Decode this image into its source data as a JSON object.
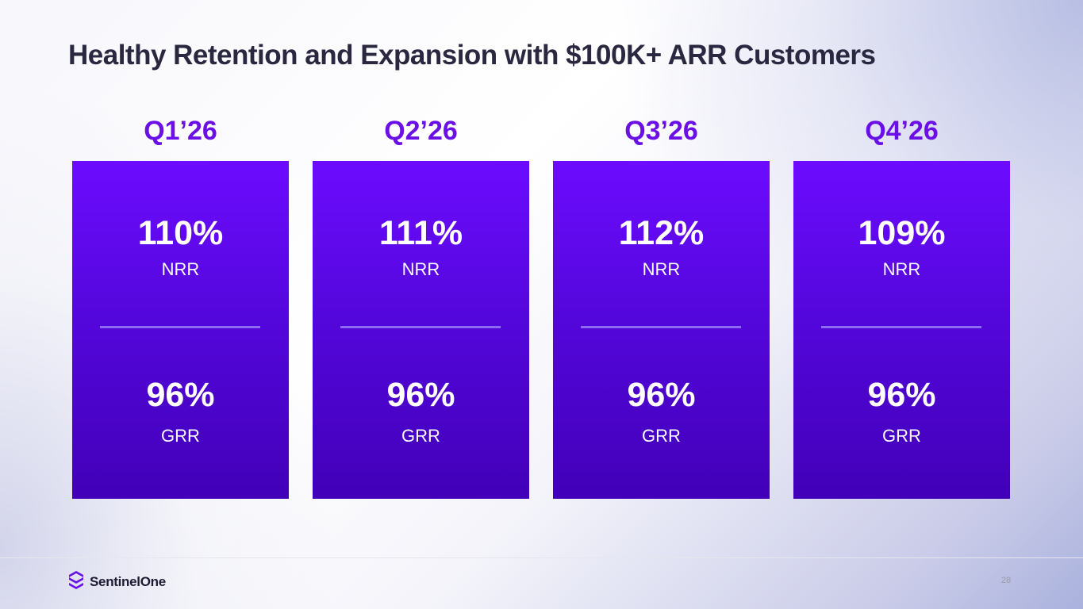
{
  "slide": {
    "title": "Healthy Retention and Expansion with $100K+ ARR Customers",
    "page_number": "28"
  },
  "quarters": [
    {
      "label": "Q1’26",
      "nrr": "110%",
      "nrr_label": "NRR",
      "grr": "96%",
      "grr_label": "GRR"
    },
    {
      "label": "Q2’26",
      "nrr": "111%",
      "nrr_label": "NRR",
      "grr": "96%",
      "grr_label": "GRR"
    },
    {
      "label": "Q3’26",
      "nrr": "112%",
      "nrr_label": "NRR",
      "grr": "96%",
      "grr_label": "GRR"
    },
    {
      "label": "Q4’26",
      "nrr": "109%",
      "nrr_label": "NRR",
      "grr": "96%",
      "grr_label": "GRR"
    }
  ],
  "footer": {
    "logo_text": "SentinelOne",
    "logo_icon": "sentinelone-logo-icon"
  },
  "colors": {
    "accent": "#6a10e6",
    "card_top": "#6c0bff",
    "card_bottom": "#4200b8",
    "title": "#2a2840"
  }
}
